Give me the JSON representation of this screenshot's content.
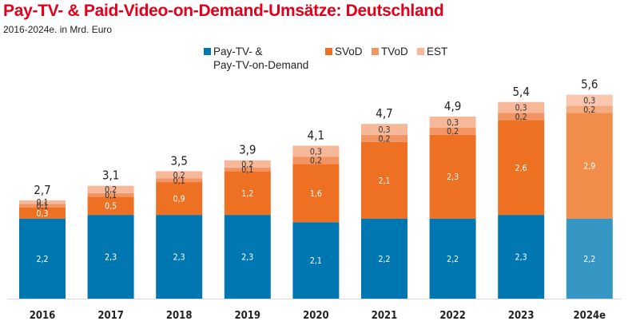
{
  "chart_data": {
    "type": "bar",
    "stacked": true,
    "title": "Pay-TV- & Paid-Video-on-Demand-Umsätze: Deutschland",
    "subtitle": "2016-2024e. in Mrd. Euro",
    "xlabel": "",
    "ylabel": "",
    "ylim": [
      0,
      6
    ],
    "grid": false,
    "legend_position": "top-center",
    "categories": [
      "2016",
      "2017",
      "2018",
      "2019",
      "2020",
      "2021",
      "2022",
      "2023",
      "2024e"
    ],
    "series": [
      {
        "name": "Pay-TV- & Pay-TV-on-Demand",
        "legend_lines": [
          "Pay-TV- &",
          "Pay-TV-on-Demand"
        ],
        "color": "#0077b0",
        "forecast_color": "#3697c4",
        "label_color": "#ffffff",
        "values": [
          2.2,
          2.3,
          2.3,
          2.3,
          2.1,
          2.2,
          2.2,
          2.3,
          2.2
        ],
        "labels": [
          "2,2",
          "2,3",
          "2,3",
          "2,3",
          "2,1",
          "2,2",
          "2,2",
          "2,3",
          "2,2"
        ]
      },
      {
        "name": "SVoD",
        "legend_lines": [
          "SVoD"
        ],
        "color": "#ee7022",
        "forecast_color": "#f28d4b",
        "label_color": "#ffffff",
        "values": [
          0.3,
          0.5,
          0.9,
          1.2,
          1.6,
          2.1,
          2.3,
          2.6,
          2.9
        ],
        "labels": [
          "0,3",
          "0,5",
          "0,9",
          "1,2",
          "1,6",
          "2,1",
          "2,3",
          "2,6",
          "2,9"
        ]
      },
      {
        "name": "TVoD",
        "legend_lines": [
          "TVoD"
        ],
        "color": "#f29562",
        "forecast_color": "#f5aa80",
        "label_color": "#333333",
        "values": [
          0.1,
          0.1,
          0.1,
          0.1,
          0.2,
          0.2,
          0.2,
          0.2,
          0.2
        ],
        "labels": [
          "0,1",
          "0,1",
          "0,1",
          "0,1",
          "0,2",
          "0,2",
          "0,2",
          "0,2",
          "0,2"
        ]
      },
      {
        "name": "EST",
        "legend_lines": [
          "EST"
        ],
        "color": "#f6b898",
        "forecast_color": "#f8c7ad",
        "label_color": "#333333",
        "values": [
          0.1,
          0.2,
          0.2,
          0.2,
          0.3,
          0.3,
          0.3,
          0.3,
          0.3
        ],
        "labels": [
          "0,1",
          "0,2",
          "0,2",
          "0,2",
          "0,3",
          "0,3",
          "0,3",
          "0,3",
          "0,3"
        ]
      }
    ],
    "totals": [
      2.7,
      3.1,
      3.5,
      3.9,
      4.1,
      4.7,
      4.9,
      5.4,
      5.6
    ],
    "total_labels": [
      "2,7",
      "3,1",
      "3,5",
      "3,9",
      "4,1",
      "4,7",
      "4,9",
      "5,4",
      "5,6"
    ],
    "forecast_categories": [
      "2024e"
    ]
  }
}
